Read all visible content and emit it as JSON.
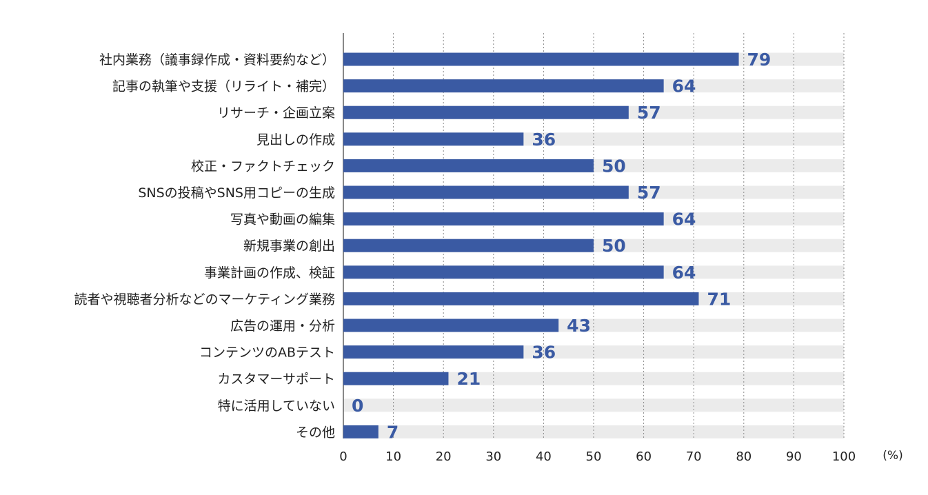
{
  "chart_data": {
    "type": "bar",
    "orientation": "horizontal",
    "categories": [
      "社内業務（議事録作成・資料要約など）",
      "記事の執筆や支援（リライト・補完）",
      "リサーチ・企画立案",
      "見出しの作成",
      "校正・ファクトチェック",
      "SNSの投稿やSNS用コピーの生成",
      "写真や動画の編集",
      "新規事業の創出",
      "事業計画の作成、検証",
      "読者や視聴者分析などのマーケティング業務",
      "広告の運用・分析",
      "コンテンツのABテスト",
      "カスタマーサポート",
      "特に活用していない",
      "その他"
    ],
    "values": [
      79,
      64,
      57,
      36,
      50,
      57,
      64,
      50,
      64,
      71,
      43,
      36,
      21,
      0,
      7
    ],
    "value_labels": [
      "79",
      "64",
      "57",
      "36",
      "50",
      "57",
      "64",
      "50",
      "64",
      "71",
      "43",
      "36",
      "21",
      "0",
      "7"
    ],
    "xlim": [
      0,
      100
    ],
    "x_ticks": [
      "0",
      "10",
      "20",
      "30",
      "40",
      "50",
      "60",
      "70",
      "80",
      "90",
      "100"
    ],
    "x_unit": "(%)",
    "grid": "vertical-dotted",
    "colors": {
      "bar": "#3a5aa3",
      "track": "#ebebeb",
      "grid": "#8a8a8a",
      "value_text": "#3a5aa3",
      "text": "#222222"
    }
  }
}
